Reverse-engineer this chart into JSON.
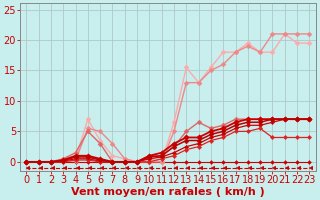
{
  "background_color": "#c8eeee",
  "grid_color": "#b0c8c8",
  "xlabel": "Vent moyen/en rafales ( km/h )",
  "xlabel_color": "#cc0000",
  "xlabel_fontsize": 8,
  "tick_color": "#cc0000",
  "tick_fontsize": 7,
  "xlim": [
    -0.5,
    23.5
  ],
  "ylim": [
    -1.5,
    26
  ],
  "yticks": [
    0,
    5,
    10,
    15,
    20,
    25
  ],
  "xticks": [
    0,
    1,
    2,
    3,
    4,
    5,
    6,
    7,
    8,
    9,
    10,
    11,
    12,
    13,
    14,
    15,
    16,
    17,
    18,
    19,
    20,
    21,
    22,
    23
  ],
  "lines": [
    {
      "x": [
        0,
        1,
        2,
        3,
        4,
        5,
        6,
        7,
        8,
        9,
        10,
        11,
        12,
        13,
        14,
        15,
        16,
        17,
        18,
        19,
        20,
        21,
        22,
        23
      ],
      "y": [
        -1,
        -1,
        -1,
        -1,
        -1,
        -1,
        -1,
        -1,
        -1,
        -1,
        -1,
        -1,
        -1,
        -1,
        -1,
        -1,
        -1,
        -1,
        -1,
        -1,
        -1,
        -1,
        -1,
        -1
      ],
      "color": "#cc0000",
      "lw": 0.8,
      "marker": 4,
      "ms": 3.5,
      "linestyle": "--",
      "zorder": 2
    },
    {
      "x": [
        0,
        1,
        2,
        3,
        4,
        5,
        6,
        7,
        8,
        9,
        10,
        11,
        12,
        13,
        14,
        15,
        16,
        17,
        18,
        19,
        20,
        21,
        22,
        23
      ],
      "y": [
        0,
        0,
        0,
        0.2,
        0.5,
        7,
        3.5,
        1,
        0.5,
        0,
        0.5,
        0,
        6.5,
        15.5,
        13,
        15.5,
        18,
        18,
        19.5,
        18,
        18,
        21,
        19.5,
        19.5
      ],
      "color": "#ffaaaa",
      "lw": 1.0,
      "marker": "D",
      "ms": 2.5,
      "linestyle": "-",
      "zorder": 3
    },
    {
      "x": [
        0,
        1,
        2,
        3,
        4,
        5,
        6,
        7,
        8,
        9,
        10,
        11,
        12,
        13,
        14,
        15,
        16,
        17,
        18,
        19,
        20,
        21,
        22,
        23
      ],
      "y": [
        0,
        0,
        0,
        0.1,
        0.2,
        5.5,
        5,
        3,
        0.5,
        0,
        0,
        0,
        5,
        13,
        13,
        15,
        16,
        18,
        19,
        18,
        21,
        21,
        21,
        21
      ],
      "color": "#ee8888",
      "lw": 1.0,
      "marker": "D",
      "ms": 2.5,
      "linestyle": "-",
      "zorder": 3
    },
    {
      "x": [
        0,
        1,
        2,
        3,
        4,
        5,
        6,
        7,
        8,
        9,
        10,
        11,
        12,
        13,
        14,
        15,
        16,
        17,
        18,
        19,
        20,
        21,
        22,
        23
      ],
      "y": [
        0,
        0,
        0,
        0.5,
        1.5,
        5,
        3,
        0,
        0,
        0,
        1,
        1,
        2.5,
        5,
        6.5,
        5.5,
        6,
        7,
        7,
        7,
        7,
        7,
        7,
        7
      ],
      "color": "#dd6666",
      "lw": 1.0,
      "marker": "D",
      "ms": 2.5,
      "linestyle": "-",
      "zorder": 4
    },
    {
      "x": [
        0,
        1,
        2,
        3,
        4,
        5,
        6,
        7,
        8,
        9,
        10,
        11,
        12,
        13,
        14,
        15,
        16,
        17,
        18,
        19,
        20,
        21,
        22,
        23
      ],
      "y": [
        0,
        0,
        0,
        0.3,
        1,
        1,
        0.5,
        0,
        0,
        0,
        1,
        1.5,
        3,
        4,
        4,
        5,
        5.5,
        6.5,
        7,
        7,
        7,
        7,
        7,
        7
      ],
      "color": "#cc0000",
      "lw": 1.3,
      "marker": "D",
      "ms": 2.8,
      "linestyle": "-",
      "zorder": 5
    },
    {
      "x": [
        0,
        1,
        2,
        3,
        4,
        5,
        6,
        7,
        8,
        9,
        10,
        11,
        12,
        13,
        14,
        15,
        16,
        17,
        18,
        19,
        20,
        21,
        22,
        23
      ],
      "y": [
        0,
        0,
        0,
        0.2,
        0.8,
        0.8,
        0.3,
        0,
        0,
        0,
        0.8,
        1,
        2.5,
        3.5,
        3.5,
        4.5,
        5,
        6,
        6.5,
        6.5,
        7,
        7,
        7,
        7
      ],
      "color": "#bb0000",
      "lw": 1.1,
      "marker": "D",
      "ms": 2.5,
      "linestyle": "-",
      "zorder": 5
    },
    {
      "x": [
        0,
        1,
        2,
        3,
        4,
        5,
        6,
        7,
        8,
        9,
        10,
        11,
        12,
        13,
        14,
        15,
        16,
        17,
        18,
        19,
        20,
        21,
        22,
        23
      ],
      "y": [
        0,
        0,
        0,
        0.1,
        0.5,
        0.5,
        0.1,
        0,
        0,
        0,
        0.5,
        0.8,
        1.5,
        2.5,
        3,
        4,
        4.5,
        5.5,
        6,
        6,
        6.5,
        7,
        7,
        7
      ],
      "color": "#cc0000",
      "lw": 0.9,
      "marker": "D",
      "ms": 2.2,
      "linestyle": "-",
      "zorder": 4
    },
    {
      "x": [
        0,
        1,
        2,
        3,
        4,
        5,
        6,
        7,
        8,
        9,
        10,
        11,
        12,
        13,
        14,
        15,
        16,
        17,
        18,
        19,
        20,
        21,
        22,
        23
      ],
      "y": [
        0,
        0,
        0,
        0,
        0.3,
        0.3,
        0,
        0,
        0,
        0,
        0,
        0.5,
        1,
        2,
        2.5,
        3.5,
        4,
        5,
        5,
        5.5,
        4,
        4,
        4,
        4
      ],
      "color": "#dd2222",
      "lw": 0.9,
      "marker": "D",
      "ms": 2.2,
      "linestyle": "-",
      "zorder": 4
    },
    {
      "x": [
        0,
        1,
        2,
        3,
        4,
        5,
        6,
        7,
        8,
        9,
        10,
        11,
        12,
        13,
        14,
        15,
        16,
        17,
        18,
        19,
        20,
        21,
        22,
        23
      ],
      "y": [
        0,
        0,
        0,
        0,
        0,
        0,
        0,
        0,
        0,
        0,
        0,
        0,
        0,
        0,
        0,
        0,
        0,
        0,
        0,
        0,
        0,
        0,
        0,
        0
      ],
      "color": "#cc0000",
      "lw": 0.8,
      "marker": "D",
      "ms": 2.0,
      "linestyle": "-",
      "zorder": 2
    }
  ]
}
